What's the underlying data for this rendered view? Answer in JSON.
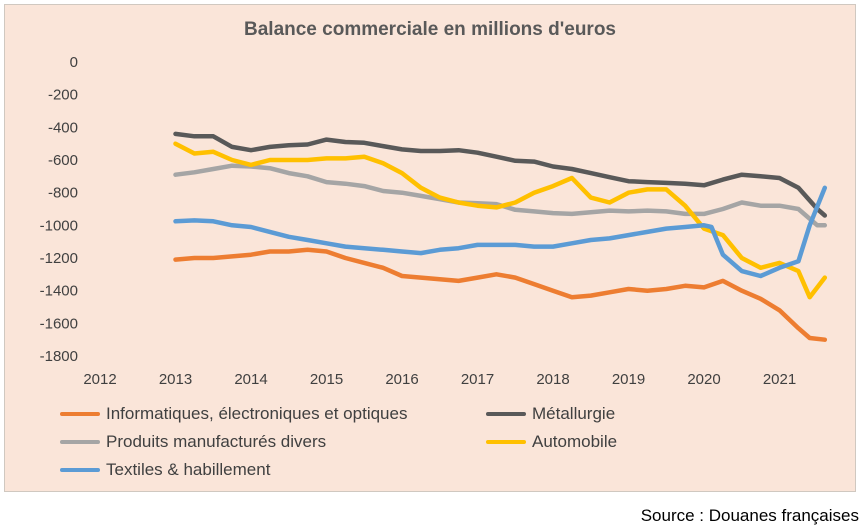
{
  "chart_data": {
    "type": "line",
    "title": "Balance commerciale en millions d'euros",
    "xlim": [
      2012,
      2021.7
    ],
    "ylim": [
      -1800,
      0
    ],
    "xticks": [
      2012,
      2013,
      2014,
      2015,
      2016,
      2017,
      2018,
      2019,
      2020,
      2021
    ],
    "yticks": [
      0,
      -200,
      -400,
      -600,
      -800,
      -1000,
      -1200,
      -1400,
      -1600,
      -1800
    ],
    "legend_position": "bottom",
    "grid": false,
    "series": [
      {
        "name": "Informatiques, électroniques et optiques",
        "color": "#ed7d31",
        "x": [
          2013,
          2013.25,
          2013.5,
          2013.75,
          2014,
          2014.25,
          2014.5,
          2014.75,
          2015,
          2015.25,
          2015.5,
          2015.75,
          2016,
          2016.25,
          2016.5,
          2016.75,
          2017,
          2017.25,
          2017.5,
          2017.75,
          2018,
          2018.25,
          2018.5,
          2018.75,
          2019,
          2019.25,
          2019.5,
          2019.75,
          2020,
          2020.25,
          2020.5,
          2020.75,
          2021,
          2021.25,
          2021.4,
          2021.6
        ],
        "y": [
          -1210,
          -1200,
          -1200,
          -1190,
          -1180,
          -1160,
          -1160,
          -1150,
          -1160,
          -1200,
          -1230,
          -1260,
          -1310,
          -1320,
          -1330,
          -1340,
          -1320,
          -1300,
          -1320,
          -1360,
          -1400,
          -1440,
          -1430,
          -1410,
          -1390,
          -1400,
          -1390,
          -1370,
          -1380,
          -1340,
          -1400,
          -1450,
          -1520,
          -1630,
          -1690,
          -1700
        ]
      },
      {
        "name": "Métallurgie",
        "color": "#595959",
        "x": [
          2013,
          2013.25,
          2013.5,
          2013.75,
          2014,
          2014.25,
          2014.5,
          2014.75,
          2015,
          2015.25,
          2015.5,
          2015.75,
          2016,
          2016.25,
          2016.5,
          2016.75,
          2017,
          2017.25,
          2017.5,
          2017.75,
          2018,
          2018.25,
          2018.5,
          2018.75,
          2019,
          2019.25,
          2019.5,
          2019.75,
          2020,
          2020.25,
          2020.5,
          2020.75,
          2021,
          2021.25,
          2021.5,
          2021.6
        ],
        "y": [
          -440,
          -455,
          -455,
          -520,
          -540,
          -520,
          -510,
          -505,
          -475,
          -490,
          -495,
          -515,
          -535,
          -545,
          -545,
          -540,
          -555,
          -580,
          -605,
          -610,
          -640,
          -655,
          -680,
          -705,
          -730,
          -735,
          -740,
          -745,
          -755,
          -720,
          -690,
          -700,
          -710,
          -770,
          -900,
          -940
        ]
      },
      {
        "name": "Produits manufacturés divers",
        "color": "#a5a5a5",
        "x": [
          2013,
          2013.25,
          2013.5,
          2013.75,
          2014,
          2014.25,
          2014.5,
          2014.75,
          2015,
          2015.25,
          2015.5,
          2015.75,
          2016,
          2016.25,
          2016.5,
          2016.75,
          2017,
          2017.25,
          2017.5,
          2017.75,
          2018,
          2018.25,
          2018.5,
          2018.75,
          2019,
          2019.25,
          2019.5,
          2019.75,
          2020,
          2020.25,
          2020.5,
          2020.75,
          2021,
          2021.25,
          2021.5,
          2021.6
        ],
        "y": [
          -690,
          -675,
          -655,
          -635,
          -640,
          -650,
          -680,
          -700,
          -735,
          -745,
          -760,
          -790,
          -800,
          -820,
          -840,
          -860,
          -865,
          -870,
          -905,
          -915,
          -925,
          -930,
          -920,
          -910,
          -915,
          -910,
          -915,
          -930,
          -930,
          -900,
          -860,
          -880,
          -880,
          -900,
          -1000,
          -1000
        ]
      },
      {
        "name": "Automobile",
        "color": "#ffc000",
        "x": [
          2013,
          2013.25,
          2013.5,
          2013.75,
          2014,
          2014.25,
          2014.5,
          2014.75,
          2015,
          2015.25,
          2015.5,
          2015.75,
          2016,
          2016.25,
          2016.5,
          2016.75,
          2017,
          2017.25,
          2017.5,
          2017.75,
          2018,
          2018.25,
          2018.5,
          2018.75,
          2019,
          2019.25,
          2019.5,
          2019.75,
          2020,
          2020.25,
          2020.5,
          2020.75,
          2021,
          2021.25,
          2021.4,
          2021.6
        ],
        "y": [
          -500,
          -560,
          -550,
          -600,
          -630,
          -600,
          -600,
          -600,
          -590,
          -590,
          -580,
          -620,
          -680,
          -770,
          -830,
          -860,
          -880,
          -890,
          -860,
          -800,
          -760,
          -710,
          -830,
          -860,
          -800,
          -780,
          -780,
          -880,
          -1020,
          -1060,
          -1200,
          -1260,
          -1230,
          -1280,
          -1440,
          -1320
        ]
      },
      {
        "name": "Textiles & habillement",
        "color": "#5b9bd5",
        "x": [
          2013,
          2013.25,
          2013.5,
          2013.75,
          2014,
          2014.25,
          2014.5,
          2014.75,
          2015,
          2015.25,
          2015.5,
          2015.75,
          2016,
          2016.25,
          2016.5,
          2016.75,
          2017,
          2017.25,
          2017.5,
          2017.75,
          2018,
          2018.25,
          2018.5,
          2018.75,
          2019,
          2019.25,
          2019.5,
          2019.75,
          2020,
          2020.1,
          2020.25,
          2020.5,
          2020.75,
          2021,
          2021.25,
          2021.4,
          2021.6
        ],
        "y": [
          -975,
          -970,
          -975,
          -1000,
          -1010,
          -1040,
          -1070,
          -1090,
          -1110,
          -1130,
          -1140,
          -1150,
          -1160,
          -1170,
          -1150,
          -1140,
          -1120,
          -1120,
          -1120,
          -1130,
          -1130,
          -1110,
          -1090,
          -1080,
          -1060,
          -1040,
          -1020,
          -1010,
          -1000,
          -1010,
          -1180,
          -1280,
          -1310,
          -1260,
          -1220,
          -1000,
          -770
        ]
      }
    ]
  },
  "source": "Source : Douanes françaises"
}
